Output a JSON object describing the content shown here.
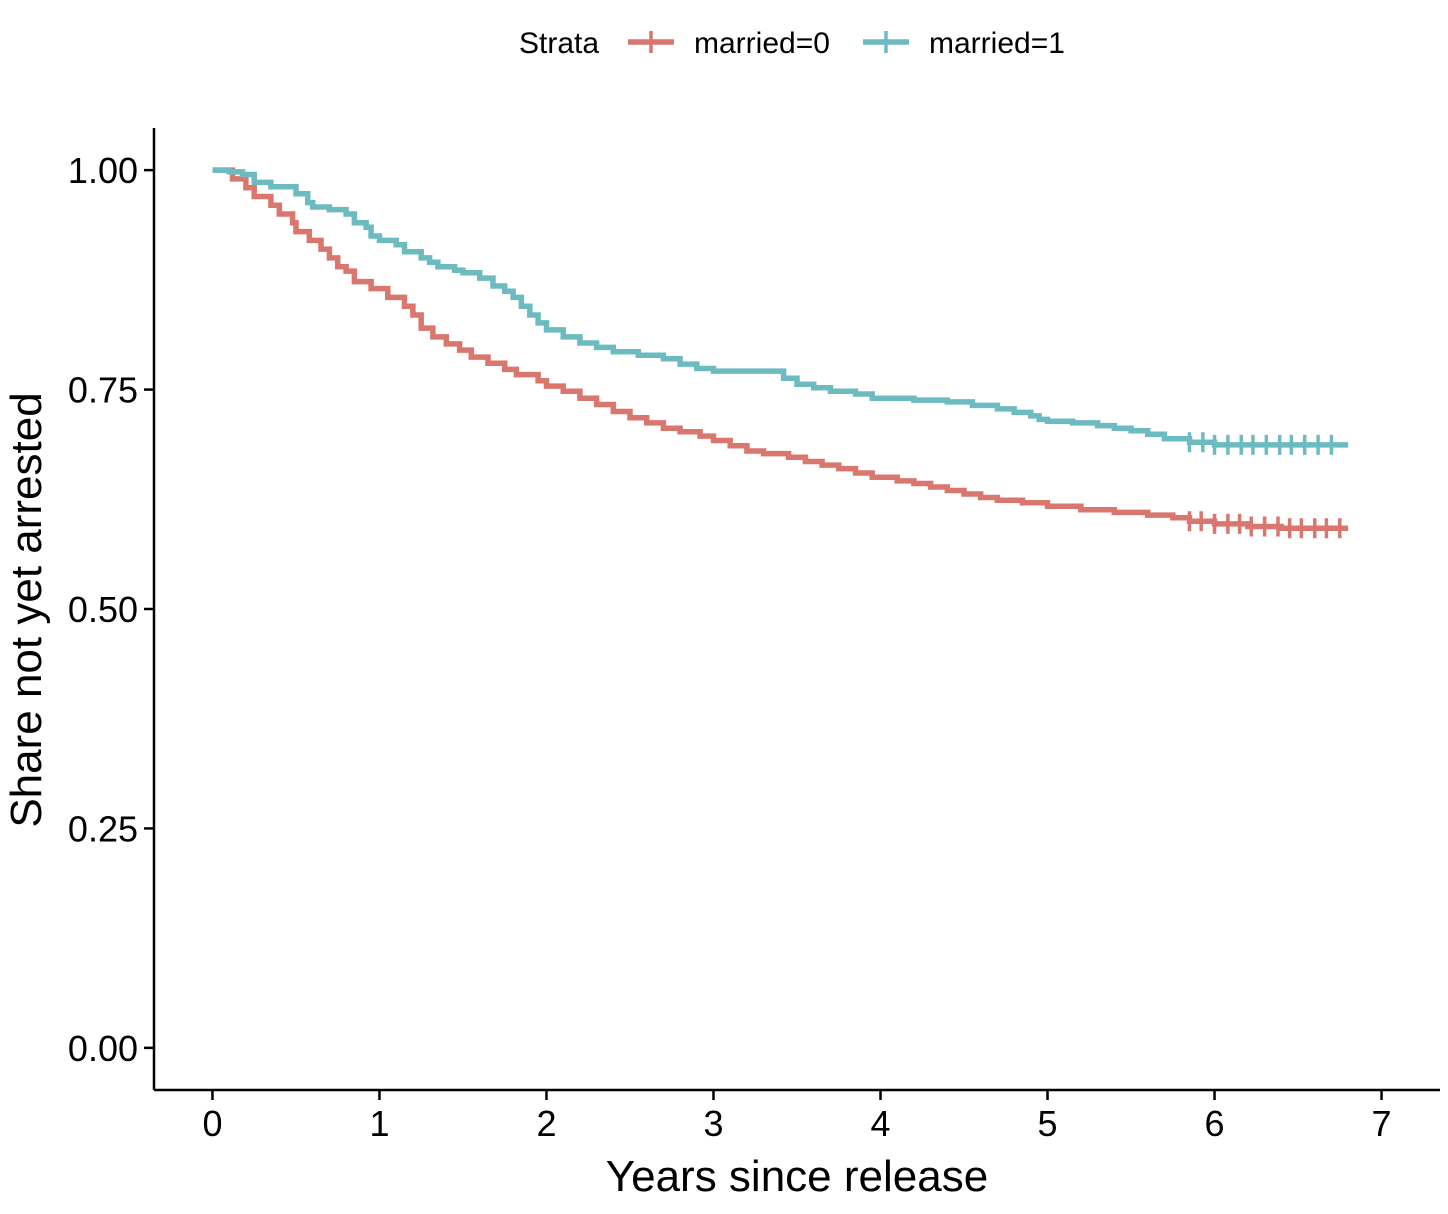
{
  "chart_data": {
    "type": "line",
    "step": true,
    "xlabel": "Years since release",
    "ylabel": "Share not yet arrested",
    "xlim": [
      -0.35,
      7.35
    ],
    "ylim": [
      -0.048,
      1.048
    ],
    "x_ticks": [
      0,
      1,
      2,
      3,
      4,
      5,
      6,
      7
    ],
    "x_tick_labels": [
      "0",
      "1",
      "2",
      "3",
      "4",
      "5",
      "6",
      "7"
    ],
    "y_ticks": [
      0,
      0.25,
      0.5,
      0.75,
      1.0
    ],
    "y_tick_labels": [
      "0.00",
      "0.25",
      "0.50",
      "0.75",
      "1.00"
    ],
    "grid": false,
    "legend": {
      "position": "top",
      "title": "Strata",
      "entries": [
        "married=0",
        "married=1"
      ]
    },
    "series": [
      {
        "name": "married=0",
        "color": "#D9776F",
        "points": [
          [
            0.0,
            1.0
          ],
          [
            0.12,
            0.99
          ],
          [
            0.2,
            0.98
          ],
          [
            0.25,
            0.97
          ],
          [
            0.35,
            0.96
          ],
          [
            0.4,
            0.95
          ],
          [
            0.48,
            0.94
          ],
          [
            0.5,
            0.93
          ],
          [
            0.58,
            0.92
          ],
          [
            0.65,
            0.91
          ],
          [
            0.7,
            0.9
          ],
          [
            0.75,
            0.89
          ],
          [
            0.8,
            0.885
          ],
          [
            0.85,
            0.873
          ],
          [
            0.95,
            0.865
          ],
          [
            1.05,
            0.855
          ],
          [
            1.15,
            0.845
          ],
          [
            1.2,
            0.835
          ],
          [
            1.25,
            0.82
          ],
          [
            1.32,
            0.81
          ],
          [
            1.4,
            0.802
          ],
          [
            1.48,
            0.795
          ],
          [
            1.55,
            0.787
          ],
          [
            1.65,
            0.78
          ],
          [
            1.75,
            0.773
          ],
          [
            1.82,
            0.767
          ],
          [
            1.95,
            0.76
          ],
          [
            2.0,
            0.754
          ],
          [
            2.1,
            0.748
          ],
          [
            2.2,
            0.74
          ],
          [
            2.3,
            0.733
          ],
          [
            2.4,
            0.725
          ],
          [
            2.5,
            0.718
          ],
          [
            2.6,
            0.712
          ],
          [
            2.7,
            0.706
          ],
          [
            2.8,
            0.702
          ],
          [
            2.92,
            0.697
          ],
          [
            3.0,
            0.692
          ],
          [
            3.1,
            0.686
          ],
          [
            3.2,
            0.68
          ],
          [
            3.3,
            0.677
          ],
          [
            3.45,
            0.673
          ],
          [
            3.55,
            0.668
          ],
          [
            3.65,
            0.664
          ],
          [
            3.75,
            0.66
          ],
          [
            3.85,
            0.655
          ],
          [
            3.95,
            0.65
          ],
          [
            4.1,
            0.646
          ],
          [
            4.2,
            0.643
          ],
          [
            4.3,
            0.639
          ],
          [
            4.4,
            0.635
          ],
          [
            4.5,
            0.631
          ],
          [
            4.6,
            0.627
          ],
          [
            4.7,
            0.624
          ],
          [
            4.85,
            0.621
          ],
          [
            5.0,
            0.617
          ],
          [
            5.2,
            0.613
          ],
          [
            5.4,
            0.61
          ],
          [
            5.6,
            0.607
          ],
          [
            5.75,
            0.604
          ],
          [
            5.85,
            0.6
          ],
          [
            6.0,
            0.597
          ],
          [
            6.2,
            0.594
          ],
          [
            6.4,
            0.592
          ],
          [
            6.8,
            0.592
          ]
        ],
        "censor_x": [
          5.85,
          5.92,
          6.0,
          6.08,
          6.15,
          6.22,
          6.3,
          6.38,
          6.45,
          6.52,
          6.6,
          6.67,
          6.75
        ]
      },
      {
        "name": "married=1",
        "color": "#6BBBC0",
        "points": [
          [
            0.0,
            1.0
          ],
          [
            0.1,
            0.998
          ],
          [
            0.18,
            0.995
          ],
          [
            0.25,
            0.986
          ],
          [
            0.35,
            0.981
          ],
          [
            0.5,
            0.973
          ],
          [
            0.57,
            0.963
          ],
          [
            0.6,
            0.958
          ],
          [
            0.7,
            0.955
          ],
          [
            0.8,
            0.95
          ],
          [
            0.85,
            0.94
          ],
          [
            0.92,
            0.935
          ],
          [
            0.95,
            0.925
          ],
          [
            1.0,
            0.92
          ],
          [
            1.1,
            0.915
          ],
          [
            1.15,
            0.907
          ],
          [
            1.25,
            0.9
          ],
          [
            1.3,
            0.895
          ],
          [
            1.35,
            0.89
          ],
          [
            1.45,
            0.886
          ],
          [
            1.5,
            0.883
          ],
          [
            1.6,
            0.877
          ],
          [
            1.68,
            0.868
          ],
          [
            1.75,
            0.862
          ],
          [
            1.8,
            0.855
          ],
          [
            1.85,
            0.845
          ],
          [
            1.9,
            0.835
          ],
          [
            1.95,
            0.826
          ],
          [
            2.0,
            0.818
          ],
          [
            2.1,
            0.81
          ],
          [
            2.2,
            0.803
          ],
          [
            2.3,
            0.798
          ],
          [
            2.4,
            0.793
          ],
          [
            2.55,
            0.789
          ],
          [
            2.7,
            0.785
          ],
          [
            2.8,
            0.779
          ],
          [
            2.9,
            0.774
          ],
          [
            3.0,
            0.771
          ],
          [
            3.2,
            0.771
          ],
          [
            3.35,
            0.771
          ],
          [
            3.42,
            0.763
          ],
          [
            3.5,
            0.756
          ],
          [
            3.6,
            0.752
          ],
          [
            3.7,
            0.748
          ],
          [
            3.85,
            0.745
          ],
          [
            3.95,
            0.74
          ],
          [
            4.2,
            0.738
          ],
          [
            4.4,
            0.736
          ],
          [
            4.55,
            0.732
          ],
          [
            4.7,
            0.728
          ],
          [
            4.8,
            0.724
          ],
          [
            4.9,
            0.72
          ],
          [
            4.95,
            0.716
          ],
          [
            5.0,
            0.714
          ],
          [
            5.1,
            0.714
          ],
          [
            5.15,
            0.712
          ],
          [
            5.3,
            0.709
          ],
          [
            5.4,
            0.706
          ],
          [
            5.5,
            0.703
          ],
          [
            5.6,
            0.699
          ],
          [
            5.7,
            0.694
          ],
          [
            5.85,
            0.69
          ],
          [
            6.0,
            0.687
          ],
          [
            6.8,
            0.687
          ]
        ],
        "censor_x": [
          5.85,
          5.93,
          6.0,
          6.08,
          6.16,
          6.23,
          6.31,
          6.39,
          6.46,
          6.54,
          6.62,
          6.7
        ]
      }
    ]
  }
}
